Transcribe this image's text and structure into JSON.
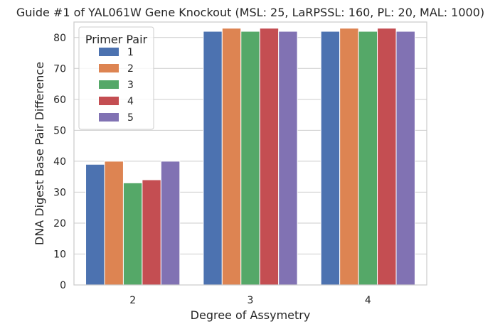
{
  "chart_data": {
    "type": "bar",
    "title": "Guide #1 of YAL061W Gene Knockout (MSL: 25, LaRPSSL: 160, PL: 20, MAL: 1000)",
    "xlabel": "Degree of Assymetry",
    "ylabel": "DNA Digest Base Pair Difference",
    "categories": [
      "2",
      "3",
      "4"
    ],
    "ylim": [
      0,
      85
    ],
    "yticks": [
      0,
      10,
      20,
      30,
      40,
      50,
      60,
      70,
      80
    ],
    "grid": true,
    "legend": {
      "title": "Primer Pair",
      "placement": "top-left"
    },
    "series": [
      {
        "name": "1",
        "color": "#4c72b0",
        "values": [
          39,
          82,
          82
        ]
      },
      {
        "name": "2",
        "color": "#dd8452",
        "values": [
          40,
          83,
          83
        ]
      },
      {
        "name": "3",
        "color": "#55a868",
        "values": [
          33,
          82,
          82
        ]
      },
      {
        "name": "4",
        "color": "#c44e52",
        "values": [
          34,
          83,
          83
        ]
      },
      {
        "name": "5",
        "color": "#8172b3",
        "values": [
          40,
          82,
          82
        ]
      }
    ]
  }
}
